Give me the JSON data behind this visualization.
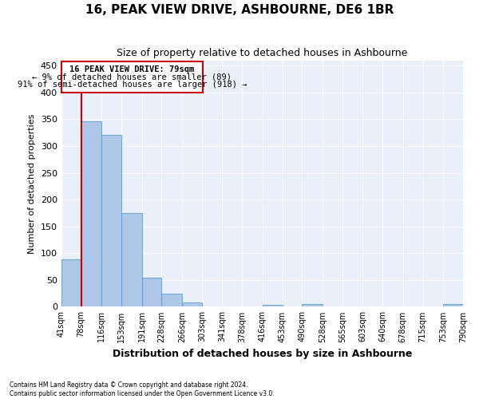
{
  "title": "16, PEAK VIEW DRIVE, ASHBOURNE, DE6 1BR",
  "subtitle": "Size of property relative to detached houses in Ashbourne",
  "xlabel": "Distribution of detached houses by size in Ashbourne",
  "ylabel": "Number of detached properties",
  "footer1": "Contains HM Land Registry data © Crown copyright and database right 2024.",
  "footer2": "Contains public sector information licensed under the Open Government Licence v3.0.",
  "annotation_line1": "16 PEAK VIEW DRIVE: 79sqm",
  "annotation_line2": "← 9% of detached houses are smaller (89)",
  "annotation_line3": "91% of semi-detached houses are larger (918) →",
  "property_line_x": 79,
  "bar_lefts": [
    41,
    78,
    116,
    153,
    191,
    228,
    266,
    303,
    341,
    378,
    416,
    453,
    490,
    528,
    565,
    603,
    640,
    678,
    715,
    753
  ],
  "bar_widths": [
    37,
    38,
    37,
    38,
    37,
    38,
    37,
    38,
    37,
    38,
    37,
    37,
    38,
    37,
    38,
    37,
    38,
    37,
    38,
    37
  ],
  "bar_heights": [
    89,
    346,
    321,
    175,
    54,
    25,
    8,
    0,
    0,
    0,
    4,
    0,
    5,
    0,
    0,
    0,
    0,
    0,
    0,
    5
  ],
  "bar_color": "#aec6e8",
  "bar_edge_color": "#5a9bd4",
  "red_line_color": "#cc0000",
  "annotation_box_color": "#cc0000",
  "ylim": [
    0,
    460
  ],
  "yticks": [
    0,
    50,
    100,
    150,
    200,
    250,
    300,
    350,
    400,
    450
  ],
  "xtick_positions": [
    41,
    78,
    116,
    153,
    191,
    228,
    266,
    303,
    341,
    378,
    416,
    453,
    490,
    528,
    565,
    603,
    640,
    678,
    715,
    753,
    790
  ],
  "xtick_labels": [
    "41sqm",
    "78sqm",
    "116sqm",
    "153sqm",
    "191sqm",
    "228sqm",
    "266sqm",
    "303sqm",
    "341sqm",
    "378sqm",
    "416sqm",
    "453sqm",
    "490sqm",
    "528sqm",
    "565sqm",
    "603sqm",
    "640sqm",
    "678sqm",
    "715sqm",
    "753sqm",
    "790sqm"
  ],
  "xlim": [
    41,
    790
  ],
  "bg_color": "#eaf0f8",
  "title_fontsize": 11,
  "subtitle_fontsize": 9,
  "ylabel_fontsize": 8,
  "xlabel_fontsize": 9
}
